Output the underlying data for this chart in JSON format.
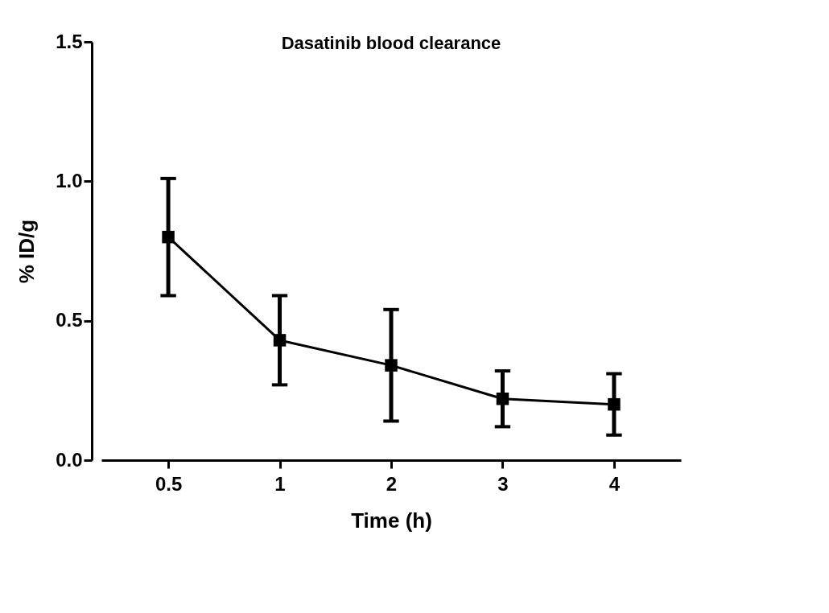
{
  "chart_data": {
    "type": "line",
    "title": "Dasatinib blood clearance",
    "xlabel": "Time (h)",
    "ylabel": "% ID/g",
    "categories": [
      "0.5",
      "1",
      "2",
      "3",
      "4"
    ],
    "series": [
      {
        "color": "#000000",
        "values": [
          0.8,
          0.43,
          0.34,
          0.22,
          0.2
        ],
        "errors": [
          0.21,
          0.16,
          0.2,
          0.1,
          0.11
        ]
      }
    ],
    "ylim": [
      0,
      1.5
    ],
    "yticks": [
      {
        "value": 0,
        "label": "0.0"
      },
      0.5,
      {
        "value": 1,
        "label": "1.0"
      },
      1.5
    ],
    "grid": false,
    "legend": false,
    "marker": "square",
    "line_style": "solid"
  }
}
